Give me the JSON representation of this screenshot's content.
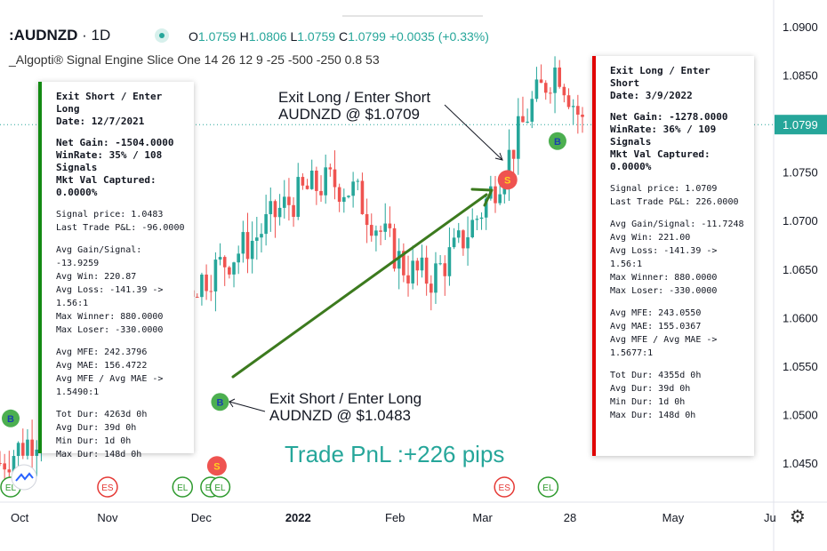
{
  "header": {
    "symbol": ":AUDNZD",
    "timeframe": "· 1D",
    "ohlc": [
      {
        "label": "O",
        "value": "1.0759"
      },
      {
        "label": "H",
        "value": "1.0806"
      },
      {
        "label": "L",
        "value": "1.0759"
      },
      {
        "label": "C",
        "value": "1.0799"
      }
    ],
    "change": "+0.0035 (+0.33%)",
    "indicator": "_Algopti® Signal Engine Slice One 14 26 12 9 -25 -500 -250 0.8 53"
  },
  "left_panel": {
    "lines": [
      {
        "text": "Exit Short / Enter Long",
        "bold": true
      },
      {
        "text": "Date: 12/7/2021",
        "bold": true
      },
      {
        "gap": true
      },
      {
        "text": "Net Gain: -1504.0000",
        "bold": true
      },
      {
        "text": "WinRate: 35% / 108",
        "bold": true
      },
      {
        "text": "Signals",
        "bold": true
      },
      {
        "text": "Mkt Val Captured:",
        "bold": true
      },
      {
        "text": "0.0000%",
        "bold": true
      },
      {
        "gap": true
      },
      {
        "text": "Signal price: 1.0483"
      },
      {
        "text": "Last Trade P&L: -96.0000"
      },
      {
        "gap": true
      },
      {
        "text": "Avg Gain/Signal: -13.9259"
      },
      {
        "text": "Avg Win: 220.87"
      },
      {
        "text": "Avg Loss: -141.39 -> 1.56:1"
      },
      {
        "text": "Max Winner: 880.0000"
      },
      {
        "text": "Max Loser: -330.0000"
      },
      {
        "gap": true
      },
      {
        "text": "Avg MFE: 242.3796"
      },
      {
        "text": "Avg MAE: 156.4722"
      },
      {
        "text": "Avg MFE / Avg MAE ->"
      },
      {
        "text": "1.5490:1"
      },
      {
        "gap": true
      },
      {
        "text": "Tot Dur: 4263d 0h"
      },
      {
        "text": "Avg Dur: 39d 0h"
      },
      {
        "text": "Min Dur: 1d 0h"
      },
      {
        "text": "Max Dur: 148d 0h"
      }
    ],
    "accent": "#138a13"
  },
  "right_panel": {
    "lines": [
      {
        "text": "Exit Long / Enter Short",
        "bold": true
      },
      {
        "text": "Date: 3/9/2022",
        "bold": true
      },
      {
        "gap": true
      },
      {
        "text": "Net Gain: -1278.0000",
        "bold": true
      },
      {
        "text": "WinRate: 36% / 109",
        "bold": true
      },
      {
        "text": "Signals",
        "bold": true
      },
      {
        "text": "Mkt Val Captured:",
        "bold": true
      },
      {
        "text": "0.0000%",
        "bold": true
      },
      {
        "gap": true
      },
      {
        "text": "Signal price: 1.0709"
      },
      {
        "text": "Last Trade P&L: 226.0000"
      },
      {
        "gap": true
      },
      {
        "text": "Avg Gain/Signal: -11.7248"
      },
      {
        "text": "Avg Win: 221.00"
      },
      {
        "text": "Avg Loss: -141.39 -> 1.56:1"
      },
      {
        "text": "Max Winner: 880.0000"
      },
      {
        "text": "Max Loser: -330.0000"
      },
      {
        "gap": true
      },
      {
        "text": "Avg MFE: 243.0550"
      },
      {
        "text": "Avg MAE: 155.0367"
      },
      {
        "text": "Avg MFE / Avg MAE ->"
      },
      {
        "text": "1.5677:1"
      },
      {
        "gap": true
      },
      {
        "text": "Tot Dur: 4355d 0h"
      },
      {
        "text": "Avg Dur: 39d 0h"
      },
      {
        "text": "Min Dur: 1d 0h"
      },
      {
        "text": "Max Dur: 148d 0h"
      }
    ],
    "accent": "#e00000"
  },
  "annotations": {
    "exit_long": [
      "Exit Long / Enter Short",
      "AUDNZD @ $1.0709"
    ],
    "exit_short": [
      "Exit Short / Enter Long",
      "AUDNZD @ $1.0483"
    ],
    "pnl": "Trade PnL :+226 pips"
  },
  "colors": {
    "up": "#26a69a",
    "down": "#ef5350",
    "buy_marker": "#4caf50",
    "sell_marker": "#ef5350",
    "trend_arrow": "#3c7a1e",
    "price_tag": "#26a69a"
  },
  "chart_data": {
    "type": "candlestick",
    "symbol": "AUDNZD",
    "interval": "1D",
    "y_axis": {
      "min": 1.042,
      "max": 1.091,
      "ticks": [
        "1.0900",
        "1.0850",
        "1.0800",
        "1.0750",
        "1.0700",
        "1.0650",
        "1.0600",
        "1.0550",
        "1.0500",
        "1.0450"
      ],
      "last_price": "1.0799"
    },
    "x_axis": {
      "ticks": [
        {
          "label": "Oct",
          "day": 0
        },
        {
          "label": "Nov",
          "day": 31
        },
        {
          "label": "Dec",
          "day": 61
        },
        {
          "label": "2022",
          "day": 92,
          "bold": true
        },
        {
          "label": "Feb",
          "day": 123
        },
        {
          "label": "Mar",
          "day": 151
        },
        {
          "label": "28",
          "day": 179
        },
        {
          "label": "May",
          "day": 212
        },
        {
          "label": "Ju",
          "day": 243
        }
      ]
    },
    "visible_price_range": {
      "low": 1.042,
      "high": 1.088
    },
    "signals": [
      {
        "type": "B",
        "day": 0,
        "price": 1.0496
      },
      {
        "type": "S",
        "day": 66,
        "price": 1.0447
      },
      {
        "type": "B",
        "day": 67,
        "price": 1.0513
      },
      {
        "type": "S",
        "day": 159,
        "price": 1.0742
      },
      {
        "type": "B",
        "day": 175,
        "price": 1.0782
      }
    ],
    "event_markers": [
      {
        "type": "EL",
        "day": 0
      },
      {
        "type": "ES",
        "day": 31
      },
      {
        "type": "EL",
        "day": 55
      },
      {
        "type": "EL",
        "day": 64
      },
      {
        "type": "EL",
        "day": 67
      },
      {
        "type": "ES",
        "day": 158
      },
      {
        "type": "EL",
        "day": 172
      }
    ],
    "trade": {
      "entry": {
        "label": "Exit Short / Enter Long",
        "price": 1.0483
      },
      "exit": {
        "label": "Exit Long / Enter Short",
        "price": 1.0709
      },
      "pnl_pips": 226
    },
    "trend_path": [
      1.045,
      1.047,
      1.049,
      1.052,
      1.055,
      1.058,
      1.06,
      1.062,
      1.064,
      1.066,
      1.068,
      1.071,
      1.073,
      1.074,
      1.073,
      1.069,
      1.065,
      1.064,
      1.067,
      1.071,
      1.076,
      1.082,
      1.086,
      1.08
    ]
  }
}
